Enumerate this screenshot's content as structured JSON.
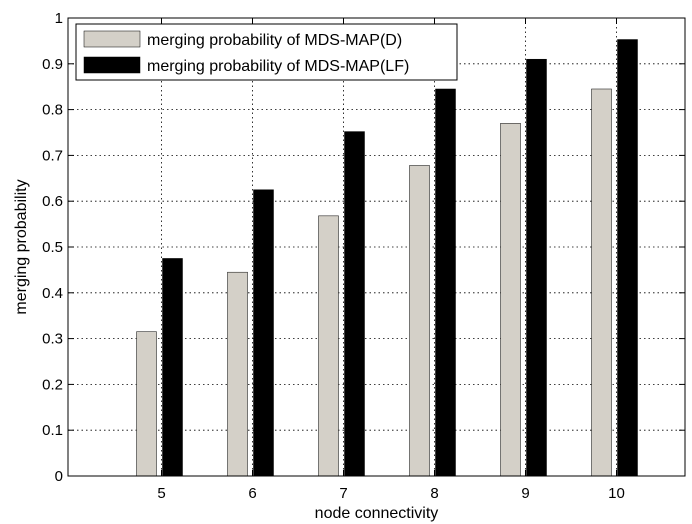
{
  "chart_data": {
    "type": "bar",
    "title": "",
    "xlabel": "node connectivity",
    "ylabel": "merging probability",
    "categories": [
      "5",
      "6",
      "7",
      "8",
      "9",
      "10"
    ],
    "ylim": [
      0,
      1
    ],
    "yticks": [
      "0",
      "0.1",
      "0.2",
      "0.3",
      "0.4",
      "0.5",
      "0.6",
      "0.7",
      "0.8",
      "0.9",
      "1"
    ],
    "grid": true,
    "legend_position": "top-left",
    "series": [
      {
        "name": "merging probability of MDS-MAP(D)",
        "color": "#d4d0c8",
        "values": [
          0.315,
          0.445,
          0.568,
          0.678,
          0.77,
          0.845
        ]
      },
      {
        "name": "merging probability of MDS-MAP(LF)",
        "color": "#000000",
        "values": [
          0.475,
          0.625,
          0.752,
          0.845,
          0.91,
          0.953
        ]
      }
    ]
  }
}
